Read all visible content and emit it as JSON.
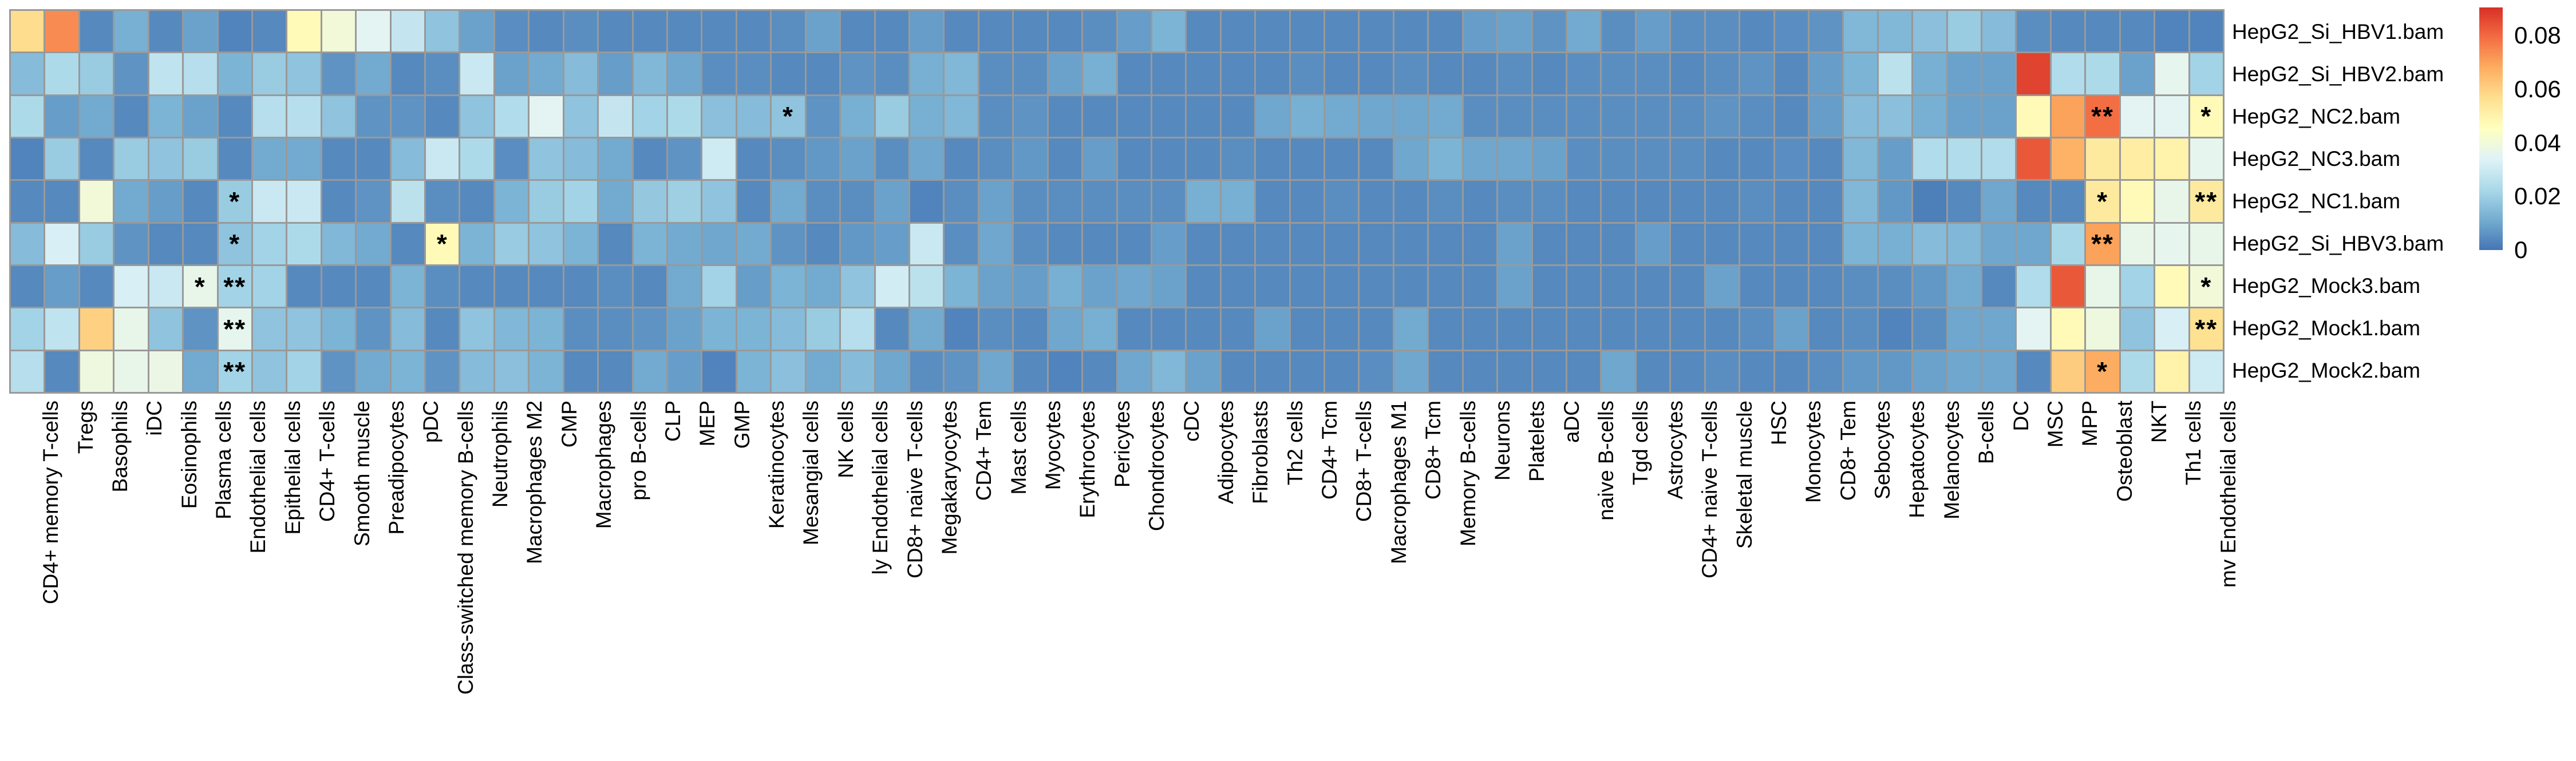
{
  "chart_data": {
    "type": "heatmap",
    "rows": [
      "HepG2_Si_HBV1.bam",
      "HepG2_Si_HBV2.bam",
      "HepG2_NC2.bam",
      "HepG2_NC3.bam",
      "HepG2_NC1.bam",
      "HepG2_Si_HBV3.bam",
      "HepG2_Mock3.bam",
      "HepG2_Mock1.bam",
      "HepG2_Mock2.bam"
    ],
    "columns": [
      "CD4+ memory T-cells",
      "Tregs",
      "Basophils",
      "iDC",
      "Eosinophils",
      "Plasma cells",
      "Endothelial cells",
      "Epithelial cells",
      "CD4+ T-cells",
      "Smooth muscle",
      "Preadipocytes",
      "pDC",
      "Class-switched memory B-cells",
      "Neutrophils",
      "Macrophages M2",
      "CMP",
      "Macrophages",
      "pro B-cells",
      "CLP",
      "MEP",
      "GMP",
      "Keratinocytes",
      "Mesangial cells",
      "NK cells",
      "ly Endothelial cells",
      "CD8+ naive T-cells",
      "Megakaryocytes",
      "CD4+ Tem",
      "Mast cells",
      "Myocytes",
      "Erythrocytes",
      "Pericytes",
      "Chondrocytes",
      "cDC",
      "Adipocytes",
      "Fibroblasts",
      "Th2 cells",
      "CD4+ Tcm",
      "CD8+ T-cells",
      "Macrophages M1",
      "CD8+ Tcm",
      "Memory B-cells",
      "Neurons",
      "Platelets",
      "aDC",
      "naive B-cells",
      "Tgd cells",
      "Astrocytes",
      "CD4+ naive T-cells",
      "Skeletal muscle",
      "HSC",
      "Monocytes",
      "CD8+ Tem",
      "Sebocytes",
      "Hepatocytes",
      "Melanocytes",
      "B-cells",
      "DC",
      "MSC",
      "MPP",
      "Osteoblast",
      "NKT",
      "Th1 cells",
      "mv Endothelial cells"
    ],
    "values": [
      [
        0.057,
        0.074,
        0.004,
        0.012,
        0.004,
        0.009,
        0.003,
        0.004,
        0.047,
        0.04,
        0.035,
        0.028,
        0.017,
        0.009,
        0.005,
        0.004,
        0.005,
        0.004,
        0.004,
        0.004,
        0.004,
        0.004,
        0.005,
        0.009,
        0.004,
        0.004,
        0.008,
        0.004,
        0.004,
        0.004,
        0.004,
        0.005,
        0.008,
        0.013,
        0.004,
        0.004,
        0.004,
        0.004,
        0.004,
        0.004,
        0.004,
        0.004,
        0.008,
        0.009,
        0.006,
        0.011,
        0.005,
        0.008,
        0.005,
        0.005,
        0.004,
        0.005,
        0.006,
        0.014,
        0.014,
        0.016,
        0.019,
        0.015,
        0.005,
        0.004,
        0.004,
        0.004,
        0.003,
        0.003
      ],
      [
        0.015,
        0.023,
        0.019,
        0.006,
        0.027,
        0.025,
        0.013,
        0.019,
        0.017,
        0.006,
        0.011,
        0.004,
        0.005,
        0.029,
        0.009,
        0.011,
        0.015,
        0.008,
        0.014,
        0.01,
        0.005,
        0.005,
        0.004,
        0.004,
        0.006,
        0.005,
        0.012,
        0.014,
        0.005,
        0.005,
        0.009,
        0.012,
        0.004,
        0.004,
        0.004,
        0.004,
        0.004,
        0.005,
        0.004,
        0.004,
        0.005,
        0.004,
        0.004,
        0.005,
        0.004,
        0.005,
        0.005,
        0.005,
        0.004,
        0.005,
        0.006,
        0.004,
        0.008,
        0.013,
        0.026,
        0.012,
        0.009,
        0.009,
        0.087,
        0.024,
        0.023,
        0.009,
        0.036,
        0.021
      ],
      [
        0.023,
        0.008,
        0.011,
        0.004,
        0.013,
        0.009,
        0.004,
        0.025,
        0.025,
        0.017,
        0.006,
        0.006,
        0.004,
        0.017,
        0.024,
        0.035,
        0.017,
        0.028,
        0.021,
        0.023,
        0.016,
        0.015,
        0.017,
        0.006,
        0.012,
        0.019,
        0.012,
        0.014,
        0.005,
        0.006,
        0.004,
        0.004,
        0.004,
        0.004,
        0.004,
        0.004,
        0.01,
        0.012,
        0.011,
        0.01,
        0.01,
        0.011,
        0.005,
        0.005,
        0.005,
        0.005,
        0.005,
        0.005,
        0.005,
        0.006,
        0.005,
        0.004,
        0.008,
        0.015,
        0.016,
        0.012,
        0.009,
        0.009,
        0.047,
        0.07,
        0.079,
        0.035,
        0.035,
        0.047
      ],
      [
        0.003,
        0.019,
        0.004,
        0.019,
        0.017,
        0.019,
        0.004,
        0.011,
        0.011,
        0.004,
        0.004,
        0.015,
        0.029,
        0.023,
        0.005,
        0.017,
        0.015,
        0.011,
        0.004,
        0.006,
        0.03,
        0.004,
        0.005,
        0.007,
        0.009,
        0.005,
        0.01,
        0.004,
        0.005,
        0.007,
        0.004,
        0.008,
        0.004,
        0.004,
        0.004,
        0.005,
        0.004,
        0.004,
        0.004,
        0.004,
        0.01,
        0.013,
        0.01,
        0.01,
        0.009,
        0.005,
        0.005,
        0.005,
        0.005,
        0.004,
        0.004,
        0.005,
        0.004,
        0.014,
        0.008,
        0.024,
        0.024,
        0.024,
        0.083,
        0.067,
        0.053,
        0.052,
        0.05,
        0.036
      ],
      [
        0.004,
        0.004,
        0.04,
        0.011,
        0.008,
        0.004,
        0.019,
        0.029,
        0.029,
        0.004,
        0.006,
        0.026,
        0.005,
        0.004,
        0.013,
        0.019,
        0.021,
        0.011,
        0.018,
        0.02,
        0.017,
        0.004,
        0.011,
        0.005,
        0.005,
        0.009,
        0.003,
        0.005,
        0.009,
        0.005,
        0.005,
        0.005,
        0.005,
        0.005,
        0.012,
        0.012,
        0.004,
        0.004,
        0.005,
        0.004,
        0.004,
        0.005,
        0.004,
        0.005,
        0.005,
        0.004,
        0.004,
        0.004,
        0.004,
        0.004,
        0.005,
        0.004,
        0.004,
        0.014,
        0.007,
        0.002,
        0.004,
        0.01,
        0.004,
        0.004,
        0.053,
        0.047,
        0.037,
        0.053
      ],
      [
        0.015,
        0.032,
        0.019,
        0.006,
        0.004,
        0.004,
        0.017,
        0.021,
        0.023,
        0.014,
        0.011,
        0.004,
        0.047,
        0.013,
        0.019,
        0.017,
        0.013,
        0.004,
        0.013,
        0.011,
        0.01,
        0.011,
        0.006,
        0.004,
        0.007,
        0.008,
        0.029,
        0.005,
        0.01,
        0.005,
        0.004,
        0.004,
        0.004,
        0.008,
        0.004,
        0.004,
        0.004,
        0.004,
        0.004,
        0.004,
        0.004,
        0.004,
        0.004,
        0.009,
        0.004,
        0.004,
        0.004,
        0.008,
        0.004,
        0.004,
        0.004,
        0.004,
        0.004,
        0.013,
        0.012,
        0.015,
        0.014,
        0.01,
        0.01,
        0.022,
        0.07,
        0.037,
        0.036,
        0.037
      ],
      [
        0.004,
        0.008,
        0.004,
        0.032,
        0.029,
        0.037,
        0.021,
        0.021,
        0.004,
        0.004,
        0.004,
        0.013,
        0.005,
        0.004,
        0.004,
        0.004,
        0.004,
        0.005,
        0.004,
        0.011,
        0.021,
        0.008,
        0.013,
        0.011,
        0.017,
        0.031,
        0.026,
        0.013,
        0.009,
        0.008,
        0.012,
        0.009,
        0.01,
        0.009,
        0.004,
        0.004,
        0.004,
        0.004,
        0.004,
        0.004,
        0.004,
        0.004,
        0.004,
        0.009,
        0.004,
        0.004,
        0.004,
        0.004,
        0.004,
        0.009,
        0.004,
        0.004,
        0.004,
        0.005,
        0.005,
        0.007,
        0.011,
        0.004,
        0.024,
        0.083,
        0.037,
        0.021,
        0.047,
        0.04
      ],
      [
        0.021,
        0.027,
        0.06,
        0.037,
        0.017,
        0.006,
        0.036,
        0.017,
        0.017,
        0.013,
        0.006,
        0.015,
        0.004,
        0.017,
        0.014,
        0.013,
        0.005,
        0.005,
        0.006,
        0.009,
        0.013,
        0.013,
        0.015,
        0.019,
        0.025,
        0.004,
        0.011,
        0.003,
        0.005,
        0.004,
        0.01,
        0.012,
        0.004,
        0.004,
        0.004,
        0.004,
        0.009,
        0.004,
        0.004,
        0.004,
        0.011,
        0.004,
        0.004,
        0.004,
        0.004,
        0.004,
        0.004,
        0.004,
        0.004,
        0.004,
        0.005,
        0.009,
        0.004,
        0.005,
        0.003,
        0.005,
        0.01,
        0.01,
        0.035,
        0.047,
        0.039,
        0.017,
        0.032,
        0.056
      ],
      [
        0.025,
        0.004,
        0.039,
        0.037,
        0.038,
        0.011,
        0.021,
        0.017,
        0.021,
        0.006,
        0.011,
        0.013,
        0.006,
        0.015,
        0.016,
        0.013,
        0.004,
        0.004,
        0.011,
        0.008,
        0.003,
        0.013,
        0.016,
        0.011,
        0.015,
        0.01,
        0.005,
        0.006,
        0.01,
        0.004,
        0.003,
        0.004,
        0.01,
        0.014,
        0.009,
        0.004,
        0.004,
        0.004,
        0.004,
        0.005,
        0.01,
        0.004,
        0.004,
        0.004,
        0.004,
        0.004,
        0.01,
        0.004,
        0.004,
        0.005,
        0.004,
        0.004,
        0.005,
        0.007,
        0.007,
        0.009,
        0.01,
        0.01,
        0.004,
        0.061,
        0.068,
        0.023,
        0.05,
        0.03
      ]
    ],
    "significance": [
      {
        "row": 2,
        "col": 22,
        "mark": "*"
      },
      {
        "row": 2,
        "col": 60,
        "mark": "**"
      },
      {
        "row": 2,
        "col": 63,
        "mark": "*"
      },
      {
        "row": 4,
        "col": 6,
        "mark": "*"
      },
      {
        "row": 4,
        "col": 60,
        "mark": "*"
      },
      {
        "row": 4,
        "col": 63,
        "mark": "**"
      },
      {
        "row": 5,
        "col": 6,
        "mark": "*"
      },
      {
        "row": 5,
        "col": 12,
        "mark": "*"
      },
      {
        "row": 5,
        "col": 60,
        "mark": "**"
      },
      {
        "row": 6,
        "col": 5,
        "mark": "*"
      },
      {
        "row": 6,
        "col": 6,
        "mark": "**"
      },
      {
        "row": 6,
        "col": 63,
        "mark": "*"
      },
      {
        "row": 7,
        "col": 6,
        "mark": "**"
      },
      {
        "row": 7,
        "col": 63,
        "mark": "**"
      },
      {
        "row": 8,
        "col": 6,
        "mark": "**"
      },
      {
        "row": 8,
        "col": 60,
        "mark": "*"
      }
    ],
    "colorbar": {
      "vmin": 0,
      "vmax": 0.0905,
      "ticks": [
        0,
        0.02,
        0.04,
        0.06,
        0.08
      ],
      "tick_labels": [
        "0",
        "0.02",
        "0.04",
        "0.06",
        "0.08"
      ],
      "colormap": "RdYlBu_r",
      "stops": [
        "#4575b4",
        "#74add1",
        "#abd9e9",
        "#e0f3f8",
        "#ffffbf",
        "#fee090",
        "#fdae61",
        "#f46d43",
        "#d73027"
      ]
    },
    "layout": {
      "grid_line_color": "#999999",
      "background": "#ffffff",
      "legend_position": "right"
    }
  }
}
